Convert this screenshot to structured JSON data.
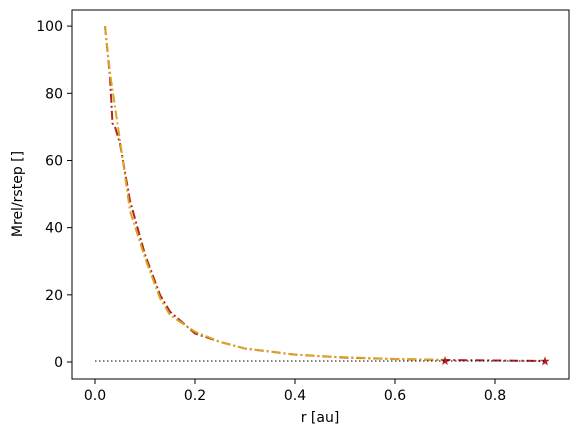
{
  "chart_data": {
    "type": "line",
    "xlabel": "r [au]",
    "ylabel": "Mrel/rstep []",
    "xlim": [
      -0.046,
      0.948
    ],
    "ylim": [
      -5.06,
      104.8
    ],
    "xticks": [
      {
        "value": 0,
        "label": "0.0"
      },
      0.2,
      0.4,
      0.6,
      0.8
    ],
    "yticks": [
      0,
      20,
      40,
      60,
      80,
      100
    ],
    "series": [
      {
        "color": "#b22222",
        "linestyle": "dashdot",
        "marker": "none",
        "x": [
          0.02,
          0.03,
          0.035,
          0.04,
          0.05,
          0.07,
          0.1,
          0.13,
          0.15,
          0.2,
          0.25,
          0.3,
          0.4,
          0.5,
          0.6,
          0.7,
          0.8,
          0.9
        ],
        "values": [
          100,
          85,
          71,
          70,
          65,
          48,
          32,
          20,
          15,
          8.5,
          6,
          4,
          2.2,
          1.3,
          0.9,
          0.6,
          0.45,
          0.3
        ]
      },
      {
        "color": "#daa520",
        "linestyle": "dashdot",
        "marker": "none",
        "x": [
          0.02,
          0.03,
          0.05,
          0.07,
          0.1,
          0.13,
          0.15,
          0.2,
          0.25,
          0.3,
          0.4,
          0.5,
          0.6,
          0.7
        ],
        "values": [
          100,
          86,
          66,
          45,
          31,
          19,
          14,
          9,
          6,
          4,
          2.2,
          1.4,
          0.9,
          0.6
        ]
      },
      {
        "color": "#b22222",
        "linestyle": "none",
        "marker": "star",
        "x": [
          0.7,
          0.9
        ],
        "values": [
          0.3,
          0.2
        ]
      },
      {
        "color": "#000000",
        "linestyle": "dotted",
        "marker": "none",
        "x": [
          0,
          0.9
        ],
        "values": [
          0.3,
          0.3
        ]
      }
    ]
  }
}
